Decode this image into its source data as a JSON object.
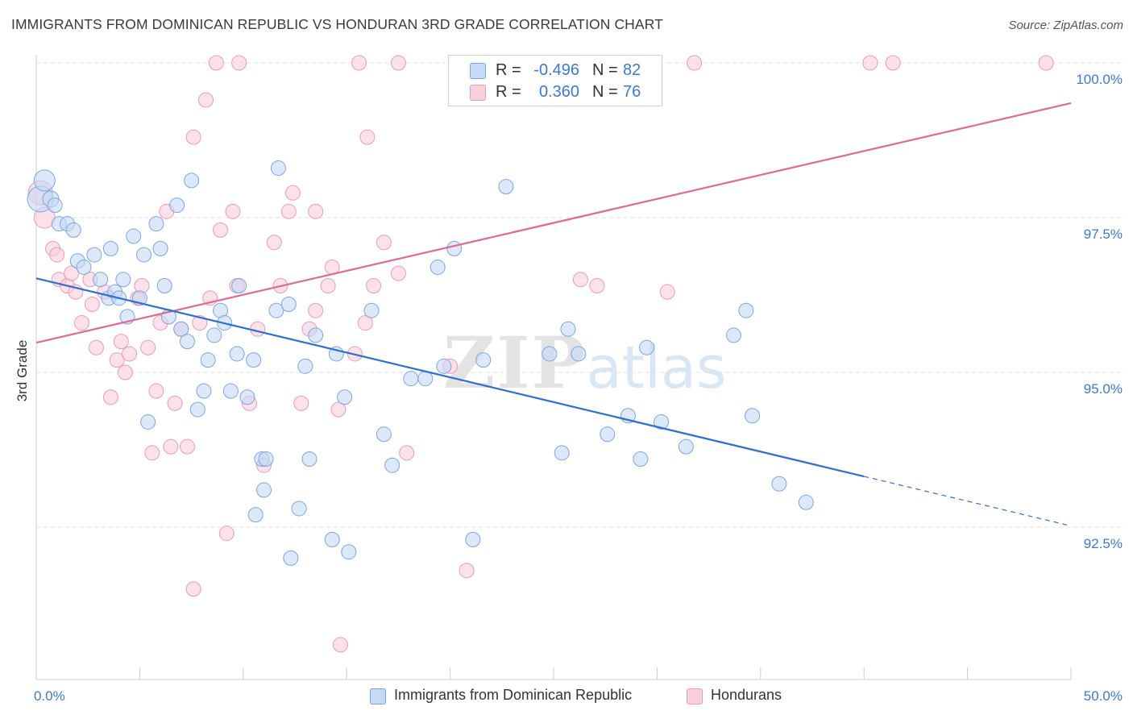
{
  "header": {
    "title": "IMMIGRANTS FROM DOMINICAN REPUBLIC VS HONDURAN 3RD GRADE CORRELATION CHART",
    "source": "Source: ZipAtlas.com"
  },
  "watermark": {
    "zip": "ZIP",
    "atlas": "atlas"
  },
  "legend_top": {
    "rows": [
      {
        "r_label": "R =",
        "r_value": "-0.496",
        "n_label": "N =",
        "n_value": "82"
      },
      {
        "r_label": "R =",
        "r_value": "0.360",
        "n_label": "N =",
        "n_value": "76"
      }
    ]
  },
  "legend_bottom": [
    {
      "label": "Immigrants from Dominican Republic"
    },
    {
      "label": "Hondurans"
    }
  ],
  "colors": {
    "blue_fill": "#c6d9f5",
    "blue_stroke": "#7aa6e3",
    "blue_line": "#2e6fd1",
    "pink_fill": "#f8cfdc",
    "pink_stroke": "#eb9ab5",
    "pink_line": "#e06a92",
    "tick_label": "#3c78d8",
    "grid": "#e3e3e3"
  },
  "chart_data": {
    "type": "scatter",
    "title": "IMMIGRANTS FROM DOMINICAN REPUBLIC VS HONDURAN 3RD GRADE CORRELATION CHART",
    "xlabel": "",
    "ylabel": "3rd Grade",
    "xlim": [
      0,
      50
    ],
    "ylim": [
      90.8,
      100.6
    ],
    "x_tick_labels": [
      "0.0%",
      "50.0%"
    ],
    "y_ticks": [
      92.5,
      95.0,
      97.5,
      100.0
    ],
    "y_tick_labels": [
      "92.5%",
      "95.0%",
      "97.5%",
      "100.0%"
    ],
    "grid": true,
    "legend_position": "top-center",
    "series": [
      {
        "name": "Immigrants from Dominican Republic",
        "color": "blue",
        "trend": {
          "x0": 0,
          "y0": 96.52,
          "x1": 40,
          "y1": 93.32,
          "dash_to_x": 50,
          "dash_to_y": 92.52
        },
        "points": [
          [
            0.2,
            97.8,
            16
          ],
          [
            0.4,
            98.1,
            13
          ],
          [
            0.7,
            97.8,
            10
          ],
          [
            0.9,
            97.7,
            9
          ],
          [
            1.1,
            97.4,
            9
          ],
          [
            1.5,
            97.4,
            9
          ],
          [
            1.8,
            97.3,
            9
          ],
          [
            2.0,
            96.8,
            9
          ],
          [
            2.3,
            96.7,
            9
          ],
          [
            2.8,
            96.9,
            9
          ],
          [
            3.1,
            96.5,
            9
          ],
          [
            3.5,
            96.2,
            9
          ],
          [
            3.8,
            96.3,
            9
          ],
          [
            3.6,
            97.0,
            9
          ],
          [
            4.0,
            96.2,
            9
          ],
          [
            4.2,
            96.5,
            9
          ],
          [
            4.4,
            95.9,
            9
          ],
          [
            4.7,
            97.2,
            9
          ],
          [
            5.0,
            96.2,
            9
          ],
          [
            5.2,
            96.9,
            9
          ],
          [
            5.4,
            94.2,
            9
          ],
          [
            5.8,
            97.4,
            9
          ],
          [
            6.0,
            97.0,
            9
          ],
          [
            6.2,
            96.4,
            9
          ],
          [
            6.4,
            95.9,
            9
          ],
          [
            6.8,
            97.7,
            9
          ],
          [
            7.0,
            95.7,
            9
          ],
          [
            7.3,
            95.5,
            9
          ],
          [
            7.5,
            98.1,
            9
          ],
          [
            7.8,
            94.4,
            9
          ],
          [
            8.1,
            94.7,
            9
          ],
          [
            8.3,
            95.2,
            9
          ],
          [
            8.6,
            95.6,
            9
          ],
          [
            8.9,
            96.0,
            9
          ],
          [
            9.1,
            95.8,
            9
          ],
          [
            9.4,
            94.7,
            9
          ],
          [
            9.7,
            95.3,
            9
          ],
          [
            9.8,
            96.4,
            9
          ],
          [
            10.2,
            94.6,
            9
          ],
          [
            10.5,
            95.2,
            9
          ],
          [
            10.9,
            93.6,
            9
          ],
          [
            11.0,
            93.1,
            9
          ],
          [
            11.1,
            93.6,
            9
          ],
          [
            10.6,
            92.7,
            9
          ],
          [
            11.6,
            96.0,
            9
          ],
          [
            11.7,
            98.3,
            9
          ],
          [
            12.2,
            96.1,
            9
          ],
          [
            12.3,
            92.0,
            9
          ],
          [
            12.7,
            92.8,
            9
          ],
          [
            13.0,
            95.1,
            9
          ],
          [
            13.2,
            93.6,
            9
          ],
          [
            13.5,
            95.6,
            9
          ],
          [
            14.3,
            92.3,
            9
          ],
          [
            14.5,
            95.3,
            9
          ],
          [
            14.9,
            94.6,
            9
          ],
          [
            15.1,
            92.1,
            9
          ],
          [
            16.2,
            96.0,
            9
          ],
          [
            16.8,
            94.0,
            9
          ],
          [
            17.2,
            93.5,
            9
          ],
          [
            18.1,
            94.9,
            9
          ],
          [
            18.8,
            94.9,
            9
          ],
          [
            19.4,
            96.7,
            9
          ],
          [
            19.7,
            95.1,
            9
          ],
          [
            20.2,
            97.0,
            9
          ],
          [
            21.1,
            92.3,
            9
          ],
          [
            21.6,
            95.2,
            9
          ],
          [
            22.7,
            98.0,
            9
          ],
          [
            24.8,
            95.3,
            9
          ],
          [
            25.4,
            93.7,
            9
          ],
          [
            25.7,
            95.7,
            9
          ],
          [
            26.2,
            95.3,
            9
          ],
          [
            27.6,
            94.0,
            9
          ],
          [
            28.6,
            94.3,
            9
          ],
          [
            29.2,
            93.6,
            9
          ],
          [
            29.5,
            95.4,
            9
          ],
          [
            30.2,
            94.2,
            9
          ],
          [
            31.4,
            93.8,
            9
          ],
          [
            33.7,
            95.6,
            9
          ],
          [
            34.3,
            96.0,
            9
          ],
          [
            34.6,
            94.3,
            9
          ],
          [
            35.9,
            93.2,
            9
          ],
          [
            37.2,
            92.9,
            9
          ]
        ]
      },
      {
        "name": "Hondurans",
        "color": "pink",
        "trend": {
          "x0": 0,
          "y0": 95.48,
          "x1": 50,
          "y1": 99.35
        },
        "points": [
          [
            0.2,
            97.9,
            15
          ],
          [
            0.4,
            97.5,
            13
          ],
          [
            0.8,
            97.0,
            9
          ],
          [
            1.1,
            96.5,
            9
          ],
          [
            1.0,
            96.9,
            9
          ],
          [
            1.5,
            96.4,
            9
          ],
          [
            1.7,
            96.6,
            9
          ],
          [
            1.9,
            96.3,
            9
          ],
          [
            2.2,
            95.8,
            9
          ],
          [
            2.6,
            96.5,
            9
          ],
          [
            2.7,
            96.1,
            9
          ],
          [
            2.9,
            95.4,
            9
          ],
          [
            3.3,
            96.3,
            9
          ],
          [
            3.6,
            94.6,
            9
          ],
          [
            3.9,
            95.2,
            9
          ],
          [
            4.1,
            95.5,
            9
          ],
          [
            4.3,
            95.0,
            9
          ],
          [
            4.5,
            95.3,
            9
          ],
          [
            4.9,
            96.2,
            9
          ],
          [
            5.1,
            96.4,
            9
          ],
          [
            5.4,
            95.4,
            9
          ],
          [
            5.6,
            93.7,
            9
          ],
          [
            5.8,
            94.7,
            9
          ],
          [
            6.0,
            95.8,
            9
          ],
          [
            6.3,
            97.6,
            9
          ],
          [
            6.5,
            93.8,
            9
          ],
          [
            6.7,
            94.5,
            9
          ],
          [
            7.0,
            95.7,
            9
          ],
          [
            7.3,
            93.8,
            9
          ],
          [
            7.6,
            98.8,
            9
          ],
          [
            7.6,
            91.5,
            9
          ],
          [
            7.9,
            95.8,
            9
          ],
          [
            8.2,
            99.4,
            9
          ],
          [
            8.4,
            96.2,
            9
          ],
          [
            8.7,
            100.0,
            9
          ],
          [
            8.9,
            97.3,
            9
          ],
          [
            9.2,
            92.4,
            9
          ],
          [
            9.5,
            97.6,
            9
          ],
          [
            9.7,
            96.4,
            9
          ],
          [
            9.8,
            100.0,
            9
          ],
          [
            10.3,
            94.5,
            9
          ],
          [
            10.7,
            95.7,
            9
          ],
          [
            11.0,
            93.5,
            9
          ],
          [
            11.5,
            97.1,
            9
          ],
          [
            11.8,
            96.4,
            9
          ],
          [
            12.2,
            97.6,
            9
          ],
          [
            12.4,
            97.9,
            9
          ],
          [
            12.8,
            94.5,
            9
          ],
          [
            13.2,
            95.7,
            9
          ],
          [
            13.5,
            97.6,
            9
          ],
          [
            13.5,
            96.0,
            9
          ],
          [
            14.1,
            96.4,
            9
          ],
          [
            14.3,
            96.7,
            9
          ],
          [
            14.6,
            94.4,
            9
          ],
          [
            14.7,
            90.6,
            9
          ],
          [
            15.4,
            95.3,
            9
          ],
          [
            15.6,
            100.0,
            9
          ],
          [
            15.9,
            95.8,
            9
          ],
          [
            16.0,
            98.8,
            9
          ],
          [
            16.3,
            96.4,
            9
          ],
          [
            16.8,
            97.1,
            9
          ],
          [
            17.5,
            96.6,
            9
          ],
          [
            17.5,
            100.0,
            9
          ],
          [
            17.9,
            93.7,
            9
          ],
          [
            20.0,
            95.1,
            9
          ],
          [
            20.8,
            91.8,
            9
          ],
          [
            26.3,
            96.5,
            9
          ],
          [
            27.1,
            96.4,
            9
          ],
          [
            27.4,
            100.0,
            9
          ],
          [
            28.8,
            100.0,
            9
          ],
          [
            29.6,
            100.0,
            9
          ],
          [
            30.5,
            96.3,
            9
          ],
          [
            31.8,
            100.0,
            9
          ],
          [
            40.3,
            100.0,
            9
          ],
          [
            41.4,
            100.0,
            9
          ],
          [
            48.8,
            100.0,
            9
          ]
        ]
      }
    ]
  }
}
